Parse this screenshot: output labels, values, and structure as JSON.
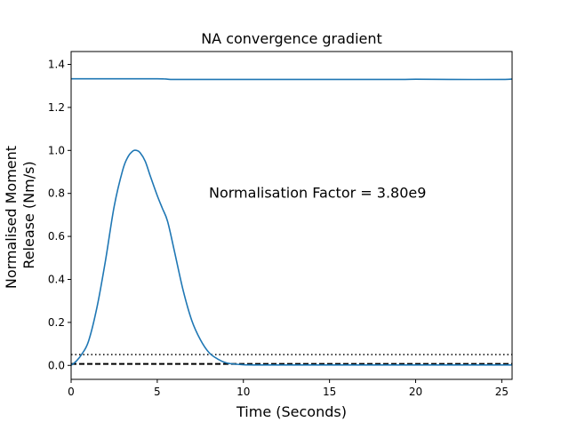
{
  "chart_data": {
    "type": "line",
    "title": "NA convergence gradient",
    "xlabel": "Time (Seconds)",
    "ylabel_lines": [
      "Normalised Moment",
      "Release (Nm/s)"
    ],
    "xlim": [
      0,
      25.6
    ],
    "ylim": [
      -0.065,
      1.46
    ],
    "xticks": [
      0,
      5,
      10,
      15,
      20,
      25
    ],
    "yticks": [
      0.0,
      0.2,
      0.4,
      0.6,
      0.8,
      1.0,
      1.2,
      1.4
    ],
    "annotation": {
      "text": "Normalisation Factor = 3.80e9",
      "x": 8.0,
      "y": 0.8
    },
    "series": [
      {
        "color": "#1f77b4",
        "x": [
          0,
          3,
          5,
          5.5,
          6,
          8,
          10,
          12,
          15,
          19,
          20,
          22,
          25,
          25.6
        ],
        "y": [
          1.333,
          1.333,
          1.333,
          1.332,
          1.33,
          1.33,
          1.33,
          1.33,
          1.33,
          1.33,
          1.331,
          1.33,
          1.33,
          1.332
        ]
      },
      {
        "color": "#1f77b4",
        "x": [
          0,
          0.3,
          0.6,
          1.0,
          1.5,
          2.0,
          2.5,
          3.0,
          3.3,
          3.6,
          3.8,
          4.0,
          4.3,
          4.6,
          5.0,
          5.3,
          5.6,
          6.0,
          6.5,
          7.0,
          7.5,
          8.0,
          8.5,
          9.0,
          9.5,
          10,
          11,
          12,
          14,
          16,
          18,
          20,
          22,
          24,
          25.6
        ],
        "y": [
          0.0,
          0.02,
          0.05,
          0.11,
          0.27,
          0.49,
          0.74,
          0.91,
          0.97,
          0.998,
          1.0,
          0.99,
          0.95,
          0.88,
          0.79,
          0.73,
          0.67,
          0.53,
          0.35,
          0.21,
          0.12,
          0.06,
          0.03,
          0.012,
          0.006,
          0.003,
          0.002,
          0.002,
          0.002,
          0.002,
          0.002,
          0.002,
          0.002,
          0.002,
          0.002
        ]
      }
    ],
    "reference_lines": [
      {
        "y": 0.05,
        "style": "dotted",
        "color": "#000000"
      },
      {
        "y": 0.007,
        "style": "dashed",
        "color": "#000000"
      }
    ]
  }
}
